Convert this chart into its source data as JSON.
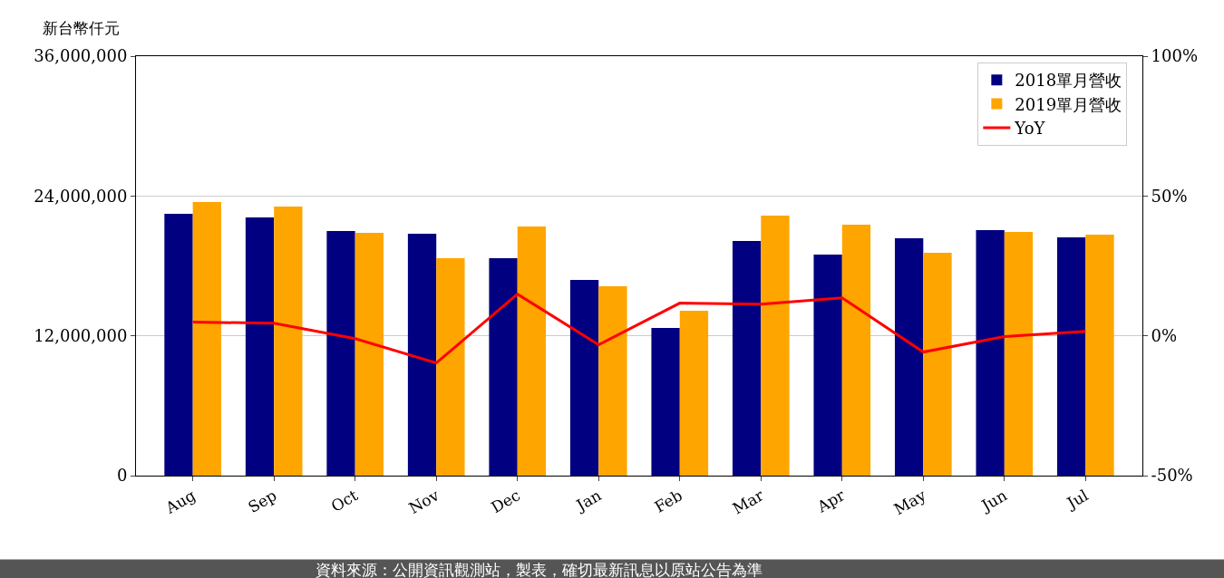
{
  "chart_data": {
    "type": "bar",
    "ylabel": "新台幣仟元",
    "categories": [
      "Aug",
      "Sep",
      "Oct",
      "Nov",
      "Dec",
      "Jan",
      "Feb",
      "Mar",
      "Apr",
      "May",
      "Jun",
      "Jul"
    ],
    "series": [
      {
        "name": "2018單月營收",
        "color": "#000080",
        "values": [
          22470000,
          22160000,
          21000000,
          20760000,
          18660000,
          16800000,
          12670000,
          20140000,
          18970000,
          20370000,
          21070000,
          20450000
        ]
      },
      {
        "name": "2019單月營收",
        "color": "#ffa500",
        "values": [
          23480000,
          23090000,
          20840000,
          18660000,
          21380000,
          16250000,
          14150000,
          22320000,
          21540000,
          19130000,
          20920000,
          20680000
        ]
      },
      {
        "name": "YoY",
        "type": "line",
        "axis": "y2",
        "color": "#ff0000",
        "marker": "none",
        "line_style": "solid",
        "values": [
          4.9,
          4.5,
          -1.0,
          -9.7,
          14.9,
          -3.2,
          11.7,
          11.3,
          13.6,
          -5.8,
          -0.3,
          1.6
        ]
      }
    ],
    "ylim": [
      0,
      36000000
    ],
    "yticks": [
      {
        "value": 0,
        "label": "0"
      },
      {
        "value": 12000000,
        "label": "12,000,000"
      },
      {
        "value": 24000000,
        "label": "24,000,000"
      },
      {
        "value": 36000000,
        "label": "36,000,000"
      }
    ],
    "y2lim": [
      -50,
      100
    ],
    "y2ticks": [
      {
        "value": -50,
        "label": "-50%"
      },
      {
        "value": 0,
        "label": "0%"
      },
      {
        "value": 50,
        "label": "50%"
      },
      {
        "value": 100,
        "label": "100%"
      }
    ],
    "grid": "y",
    "legend": "top right",
    "annotations": [
      "資料來源：公開資訊觀測站，製表，確切最新訊息以原站公告為準"
    ]
  }
}
